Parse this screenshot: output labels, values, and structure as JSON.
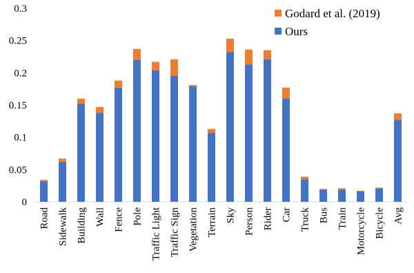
{
  "chart_data": {
    "type": "bar",
    "stacked": true,
    "categories": [
      "Road",
      "Sidewalk",
      "Building",
      "Wall",
      "Fence",
      "Pole",
      "Traffic Light",
      "Traffic Sign",
      "Vegetation",
      "Terrain",
      "Sky",
      "Person",
      "Rider",
      "Car",
      "Truck",
      "Bus",
      "Train",
      "Motorcycle",
      "Bicycle",
      "Avg"
    ],
    "series": [
      {
        "name": "Ours",
        "color": "#4472C4",
        "values": [
          0.032,
          0.062,
          0.152,
          0.138,
          0.177,
          0.22,
          0.204,
          0.195,
          0.179,
          0.107,
          0.232,
          0.213,
          0.221,
          0.16,
          0.035,
          0.019,
          0.019,
          0.016,
          0.021,
          0.127
        ]
      },
      {
        "name": "Godard et al. (2019)",
        "color": "#ED7D31",
        "values": [
          0.002,
          0.005,
          0.008,
          0.009,
          0.011,
          0.017,
          0.013,
          0.026,
          0.002,
          0.006,
          0.021,
          0.023,
          0.014,
          0.017,
          0.004,
          0.001,
          0.002,
          0.001,
          0.001,
          0.01
        ]
      }
    ],
    "yticks": [
      "0",
      "0.05",
      "0.1",
      "0.15",
      "0.2",
      "0.25",
      "0.3"
    ],
    "ylim": [
      0,
      0.3
    ],
    "grid": false,
    "legend_placement": "top-right"
  }
}
